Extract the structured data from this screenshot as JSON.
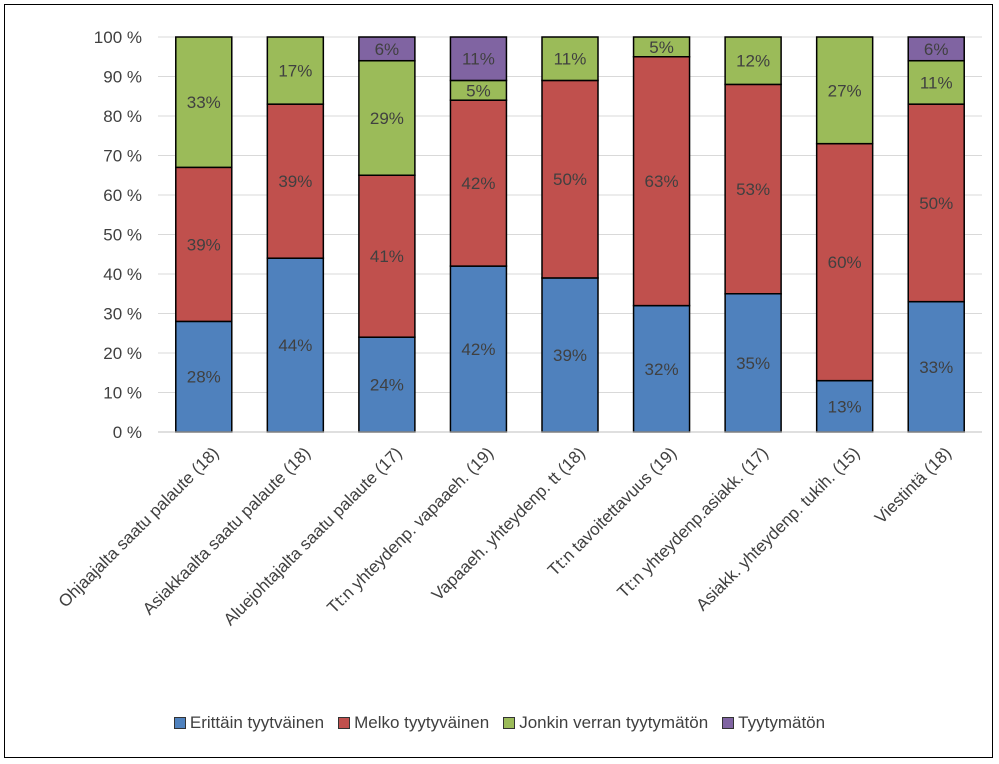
{
  "chart_data": {
    "type": "bar",
    "stacked": true,
    "categories": [
      "Ohjaajalta saatu palaute (18)",
      "Asiakkaalta saatu palaute (18)",
      "Aluejohtajalta saatu palaute (17)",
      "Tt:n yhteydenp. vapaaeh. (19)",
      "Vapaaeh. yhteydenp. tt (18)",
      "Tt:n tavoitettavuus (19)",
      "Tt:n yhteydenp.asiakk. (17)",
      "Asiakk. yhteydenp. tukih. (15)",
      "Viestintä (18)"
    ],
    "series": [
      {
        "name": "Erittäin tyytväinen",
        "color": "#4f81bd",
        "values": [
          28,
          44,
          24,
          42,
          39,
          32,
          35,
          13,
          33
        ]
      },
      {
        "name": "Melko tyytyväinen",
        "color": "#c0504d",
        "values": [
          39,
          39,
          41,
          42,
          50,
          63,
          53,
          60,
          50
        ]
      },
      {
        "name": "Jonkin verran tyytymätön",
        "color": "#9bbb59",
        "values": [
          33,
          17,
          29,
          5,
          11,
          5,
          12,
          27,
          11
        ]
      },
      {
        "name": "Tyytymätön",
        "color": "#8064a2",
        "values": [
          0,
          0,
          6,
          11,
          0,
          0,
          0,
          0,
          6
        ]
      }
    ],
    "ylim": [
      0,
      100
    ],
    "yticks": [
      "0 %",
      "10 %",
      "20 %",
      "30 %",
      "40 %",
      "50 %",
      "60 %",
      "70 %",
      "80 %",
      "90 %",
      "100 %"
    ],
    "value_suffix": "%",
    "grid": true,
    "legend_position": "bottom"
  }
}
